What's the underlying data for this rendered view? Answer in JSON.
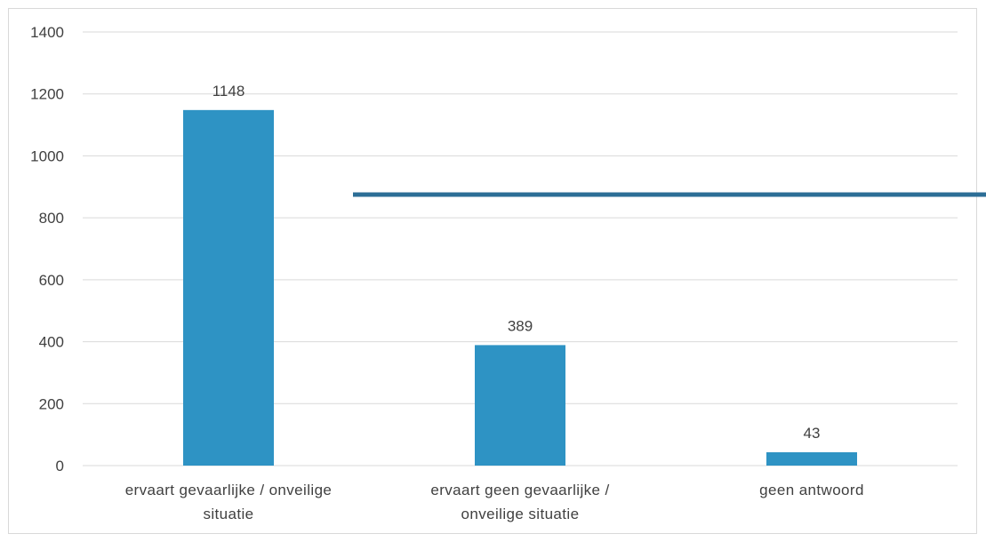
{
  "chart_data": {
    "type": "bar",
    "categories": [
      [
        "ervaart gevaarlijke / onveilige",
        "situatie"
      ],
      [
        "ervaart geen gevaarlijke /",
        "onveilige situatie"
      ],
      [
        "geen antwoord"
      ]
    ],
    "values": [
      1148,
      389,
      43
    ],
    "data_labels": [
      "1148",
      "389",
      "43"
    ],
    "ylim": [
      0,
      1400
    ],
    "yticks": [
      0,
      200,
      400,
      600,
      800,
      1000,
      1200,
      1400
    ],
    "ytick_labels": [
      "0",
      "200",
      "400",
      "600",
      "800",
      "1000",
      "1200",
      "1400"
    ],
    "grid": true,
    "legend": "none",
    "title": "",
    "xlabel": "",
    "ylabel": "",
    "colors": {
      "bar": "#2E93C4",
      "grid": "#d9d9d9",
      "text": "#404040",
      "overlay_line": "#2C6E96"
    }
  }
}
